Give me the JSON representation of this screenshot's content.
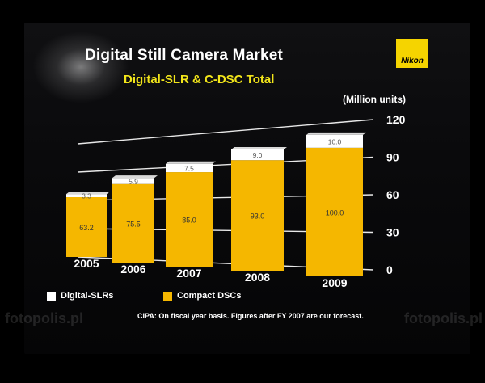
{
  "chart_data": {
    "type": "bar",
    "title": "Digital Still Camera Market",
    "subtitle": "Digital-SLR & C-DSC Total",
    "unit_label": "(Million units)",
    "categories": [
      "2005",
      "2006",
      "2007",
      "2008",
      "2009"
    ],
    "series": [
      {
        "name": "Compact DSCs",
        "values": [
          63.2,
          75.5,
          85.0,
          93.0,
          100.0
        ],
        "labels": [
          "63.2",
          "75.5",
          "85.0",
          "93.0",
          "100.0"
        ],
        "color": "#f5b700"
      },
      {
        "name": "Digital-SLRs",
        "values": [
          3.3,
          5.9,
          7.5,
          9.0,
          10.0
        ],
        "labels": [
          "3.3",
          "5.9",
          "7.5",
          "9.0",
          "10.0"
        ],
        "color": "#ffffff"
      }
    ],
    "stacked": true,
    "y_ticks": [
      "120",
      "90",
      "60",
      "30",
      "0"
    ],
    "ylim": [
      0,
      120
    ],
    "grid": true,
    "legend": "bottom-left",
    "footnote": "CIPA: On fiscal year basis. Figures after FY 2007 are our forecast."
  },
  "logo_text": "Nikon",
  "watermark": "fotopolis.pl",
  "colors": {
    "slr": "#ffffff",
    "compact": "#f5b700",
    "accent": "#f2e51a"
  }
}
